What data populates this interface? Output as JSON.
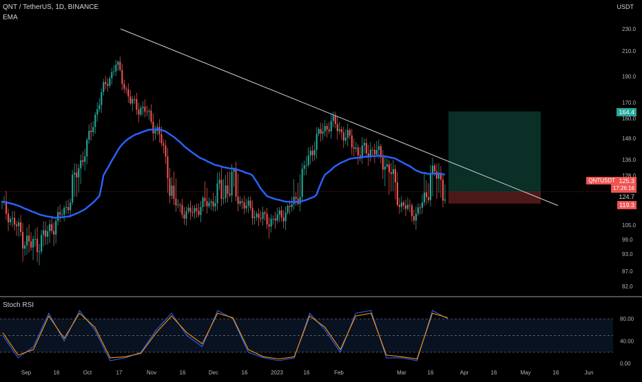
{
  "header": {
    "ticker": "QNT / TetherUS, 1D, BINANCE",
    "indicator": "EMA",
    "currency": "USDT"
  },
  "sub_panel": {
    "title": "Stoch RSI"
  },
  "colors": {
    "up": "#26a69a",
    "down": "#ef5350",
    "ema": "#2962ff",
    "trendline": "#d1d4dc",
    "profit_zone": "#0b3b30",
    "loss_zone": "#5a1c1c",
    "k_line": "#2962ff",
    "d_line": "#ff9800"
  },
  "price_tags": {
    "target": "164.4",
    "symbol": "QNTUSDT",
    "last": "125.3",
    "countdown": "17:26:16",
    "ema_value": "124.7",
    "stop": "119.3"
  },
  "chart_data": [
    {
      "type": "candlestick",
      "title": "QNT / TetherUS, 1D, BINANCE",
      "y_axis_unit": "USDT",
      "y_ticks": [
        "230.0",
        "210.0",
        "190.0",
        "170.0",
        "160.0",
        "148.0",
        "136.0",
        "128.0",
        "124.7",
        "105.0",
        "99.0",
        "93.0",
        "87.0",
        "82.0"
      ],
      "x_ticks": [
        "Sep",
        "16",
        "Oct",
        "17",
        "Nov",
        "16",
        "Dec",
        "16",
        "2023",
        "16",
        "Feb",
        "Mar",
        "16",
        "Apr",
        "16",
        "May",
        "16",
        "Jun"
      ],
      "approx_close_path": [
        {
          "date": "Sep",
          "close": 118
        },
        {
          "date": "Sep 10",
          "close": 104
        },
        {
          "date": "Sep 16",
          "close": 96
        },
        {
          "date": "Sep 22",
          "close": 100
        },
        {
          "date": "Sep 28",
          "close": 110
        },
        {
          "date": "Oct",
          "close": 125
        },
        {
          "date": "Oct 8",
          "close": 145
        },
        {
          "date": "Oct 14",
          "close": 178
        },
        {
          "date": "Oct 17",
          "close": 200
        },
        {
          "date": "Oct 22",
          "close": 170
        },
        {
          "date": "Oct 30",
          "close": 165
        },
        {
          "date": "Nov",
          "close": 150
        },
        {
          "date": "Nov 5",
          "close": 120
        },
        {
          "date": "Nov 10",
          "close": 112
        },
        {
          "date": "Nov 16",
          "close": 118
        },
        {
          "date": "Nov 24",
          "close": 122
        },
        {
          "date": "Dec",
          "close": 128
        },
        {
          "date": "Dec 8",
          "close": 118
        },
        {
          "date": "Dec 16",
          "close": 110
        },
        {
          "date": "Dec 24",
          "close": 108
        },
        {
          "date": "2023",
          "close": 115
        },
        {
          "date": "Jan 8",
          "close": 128
        },
        {
          "date": "Jan 16",
          "close": 148
        },
        {
          "date": "Jan 22",
          "close": 158
        },
        {
          "date": "Feb",
          "close": 150
        },
        {
          "date": "Feb 8",
          "close": 140
        },
        {
          "date": "Feb 16",
          "close": 142
        },
        {
          "date": "Feb 24",
          "close": 132
        },
        {
          "date": "Mar",
          "close": 118
        },
        {
          "date": "Mar 8",
          "close": 112
        },
        {
          "date": "Mar 16",
          "close": 130
        },
        {
          "date": "Mar 22",
          "close": 125.3
        }
      ],
      "ema_value": 124.7,
      "trendline": {
        "from": {
          "date": "Oct 17",
          "price": 230
        },
        "to": {
          "date": "May 16",
          "price": 118
        }
      },
      "position": {
        "entry": 125.3,
        "target": 164.4,
        "stop": 119.3
      }
    },
    {
      "type": "line",
      "title": "Stoch RSI",
      "y_ticks": [
        "80.00",
        "40.00",
        "0.00"
      ],
      "levels": [
        80,
        50,
        20
      ],
      "series": [
        {
          "name": "K",
          "values": [
            50,
            10,
            30,
            90,
            40,
            95,
            60,
            5,
            10,
            20,
            60,
            90,
            50,
            30,
            95,
            80,
            20,
            10,
            5,
            10,
            90,
            60,
            20,
            90,
            95,
            10,
            10,
            5,
            95,
            80
          ]
        },
        {
          "name": "D",
          "values": [
            55,
            15,
            25,
            85,
            45,
            90,
            65,
            10,
            12,
            18,
            55,
            85,
            55,
            35,
            90,
            82,
            25,
            12,
            8,
            12,
            85,
            65,
            25,
            85,
            90,
            15,
            12,
            8,
            90,
            82
          ]
        }
      ]
    }
  ]
}
